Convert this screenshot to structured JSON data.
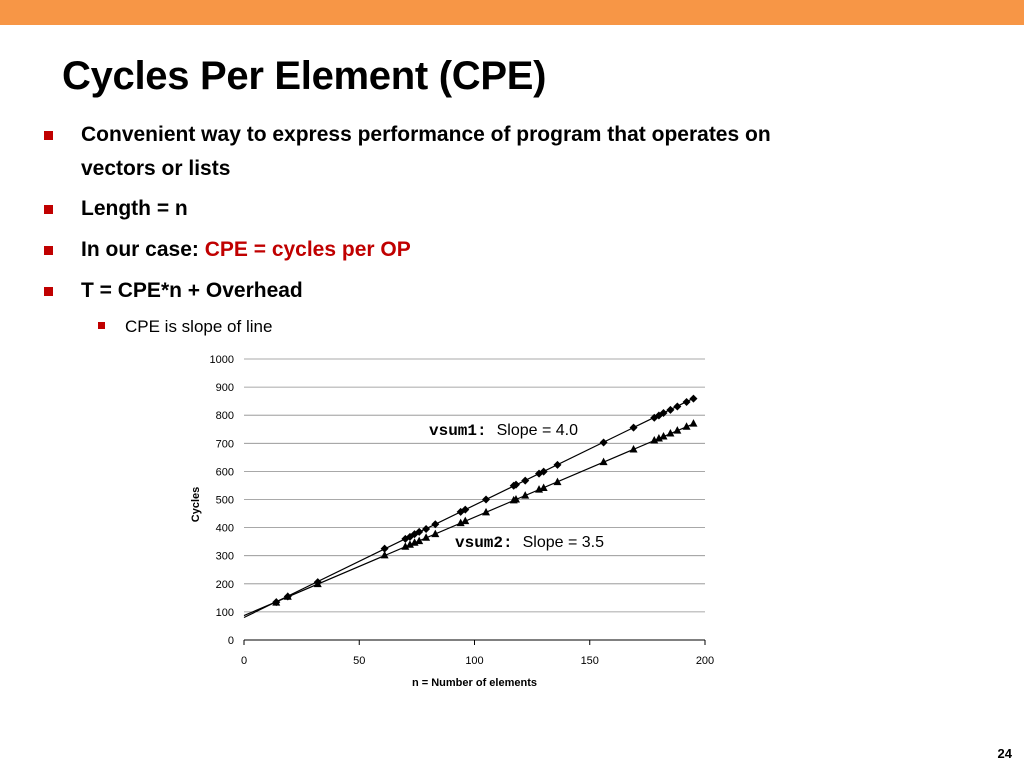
{
  "slide": {
    "title": "Cycles Per Element (CPE)",
    "page_number": "24",
    "accent_color": "#f79646",
    "bullet_color": "#c00000"
  },
  "bullets": [
    {
      "text_line1": "Convenient way to express performance of program that operates on",
      "text_line2": "vectors or lists"
    },
    {
      "text": "Length = n"
    },
    {
      "prefix": "In our case: ",
      "highlight": "CPE = cycles per OP"
    },
    {
      "text": "T = CPE*n + Overhead"
    }
  ],
  "sub_bullet": {
    "text": "CPE is slope of line"
  },
  "chart_data": {
    "type": "scatter",
    "xlabel": "n = Number of elements",
    "ylabel": "Cycles",
    "xlim": [
      0,
      200
    ],
    "ylim": [
      0,
      1000
    ],
    "xticks": [
      0,
      50,
      100,
      150,
      200
    ],
    "yticks": [
      0,
      100,
      200,
      300,
      400,
      500,
      600,
      700,
      800,
      900,
      1000
    ],
    "grid": "horizontal",
    "series": [
      {
        "name": "vsum1",
        "marker": "diamond",
        "slope_label": "Slope = 4.0",
        "fit": {
          "slope": 4.0,
          "intercept": 80
        },
        "x": [
          14,
          19,
          32,
          61,
          70,
          72,
          74,
          76,
          79,
          83,
          94,
          96,
          105,
          117,
          118,
          122,
          128,
          130,
          136,
          156,
          169,
          178,
          180,
          182,
          185,
          188,
          192,
          195
        ],
        "y": [
          135,
          155,
          206,
          325,
          360,
          367,
          377,
          385,
          395,
          412,
          456,
          464,
          500,
          549,
          553,
          567,
          592,
          599,
          623,
          703,
          756,
          791,
          799,
          808,
          819,
          831,
          847,
          859
        ]
      },
      {
        "name": "vsum2",
        "marker": "triangle",
        "slope_label": "Slope = 3.5",
        "fit": {
          "slope": 3.5,
          "intercept": 87
        },
        "x": [
          14,
          19,
          32,
          61,
          70,
          72,
          74,
          76,
          79,
          83,
          94,
          96,
          105,
          117,
          118,
          122,
          128,
          130,
          136,
          156,
          169,
          178,
          180,
          182,
          185,
          188,
          192,
          195
        ],
        "y": [
          133,
          154,
          199,
          301,
          332,
          339,
          346,
          352,
          364,
          377,
          416,
          423,
          454,
          497,
          500,
          514,
          535,
          541,
          562,
          633,
          678,
          710,
          717,
          724,
          735,
          745,
          759,
          770
        ]
      }
    ]
  }
}
